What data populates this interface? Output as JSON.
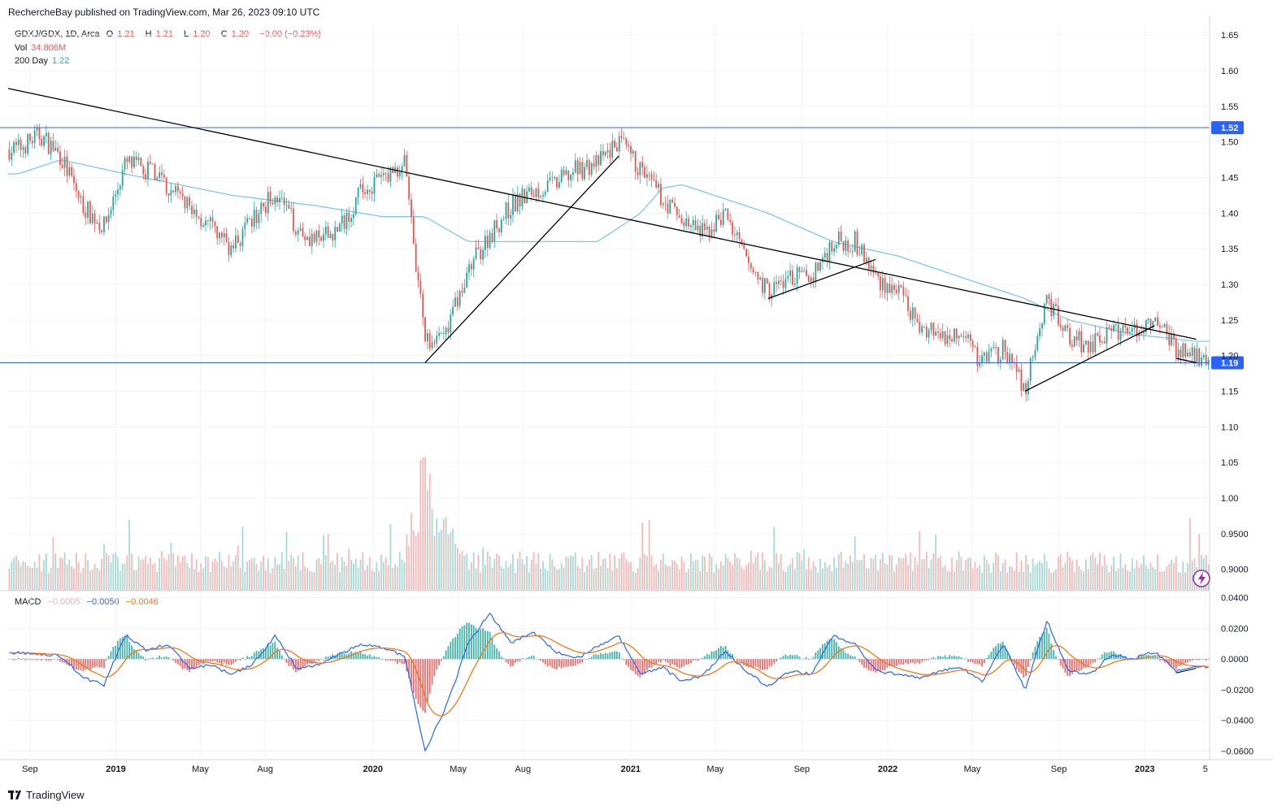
{
  "header": {
    "publisher": "RechercheBay published on TradingView.com, Mar 26, 2023 09:10 UTC"
  },
  "legend": {
    "symbol": "GDXJ/GDX, 1D, Arca",
    "open_label": "O",
    "open_value": "1.21",
    "high_label": "H",
    "high_value": "1.21",
    "low_label": "L",
    "low_value": "1.20",
    "close_label": "C",
    "close_value": "1.20",
    "change": "−0.00 (−0.23%)",
    "vol_label": "Vol",
    "vol_value": "34.806M",
    "ma_label": "200 Day",
    "ma_value": "1.22",
    "macd_label": "MACD",
    "macd_hist": "−0.0005",
    "macd_line": "−0.0050",
    "macd_signal": "−0.0046"
  },
  "footer": {
    "brand": "TradingView"
  },
  "colors": {
    "up": "#26a69a",
    "down": "#ef5350",
    "ma": "#7ec8e3",
    "hline": "#2962ff",
    "macd": "#2962ff",
    "signal": "#ff6d00",
    "trend": "#000000"
  },
  "chart_data": [
    {
      "type": "candlestick",
      "name": "price",
      "y_axis_ticks": [
        "1.65",
        "1.60",
        "1.55",
        "1.50",
        "1.45",
        "1.40",
        "1.35",
        "1.30",
        "1.25",
        "1.20",
        "1.15",
        "1.10",
        "1.05",
        "1.00",
        "0.9500",
        "0.9000"
      ],
      "ylim": [
        0.87,
        1.665
      ],
      "x_ticks": [
        {
          "label": "Sep",
          "bold": false
        },
        {
          "label": "2019",
          "bold": true
        },
        {
          "label": "May",
          "bold": false
        },
        {
          "label": "Aug",
          "bold": false
        },
        {
          "label": "2020",
          "bold": true
        },
        {
          "label": "May",
          "bold": false
        },
        {
          "label": "Aug",
          "bold": false
        },
        {
          "label": "2021",
          "bold": true
        },
        {
          "label": "May",
          "bold": false
        },
        {
          "label": "Sep",
          "bold": false
        },
        {
          "label": "2022",
          "bold": true
        },
        {
          "label": "May",
          "bold": false
        },
        {
          "label": "Sep",
          "bold": false
        },
        {
          "label": "2023",
          "bold": true
        },
        {
          "label": "5",
          "bold": false
        }
      ],
      "horizontal_levels": [
        {
          "value": 1.52,
          "label": "1.52"
        },
        {
          "value": 1.19,
          "label": "1.19"
        }
      ],
      "close_path": [
        [
          "2018-08",
          1.49
        ],
        [
          "2018-09",
          1.51
        ],
        [
          "2018-10",
          1.48
        ],
        [
          "2018-11",
          1.41
        ],
        [
          "2018-12",
          1.38
        ],
        [
          "2019-01",
          1.47
        ],
        [
          "2019-02",
          1.46
        ],
        [
          "2019-03",
          1.44
        ],
        [
          "2019-04",
          1.41
        ],
        [
          "2019-05",
          1.38
        ],
        [
          "2019-06",
          1.35
        ],
        [
          "2019-07",
          1.39
        ],
        [
          "2019-08",
          1.43
        ],
        [
          "2019-09",
          1.38
        ],
        [
          "2019-10",
          1.36
        ],
        [
          "2019-11",
          1.38
        ],
        [
          "2019-12",
          1.43
        ],
        [
          "2020-01",
          1.45
        ],
        [
          "2020-02",
          1.47
        ],
        [
          "2020-03",
          1.22
        ],
        [
          "2020-04",
          1.24
        ],
        [
          "2020-05",
          1.32
        ],
        [
          "2020-06",
          1.37
        ],
        [
          "2020-07",
          1.41
        ],
        [
          "2020-08",
          1.43
        ],
        [
          "2020-09",
          1.44
        ],
        [
          "2020-10",
          1.46
        ],
        [
          "2020-11",
          1.47
        ],
        [
          "2020-12",
          1.5
        ],
        [
          "2021-01",
          1.46
        ],
        [
          "2021-02",
          1.42
        ],
        [
          "2021-03",
          1.39
        ],
        [
          "2021-04",
          1.37
        ],
        [
          "2021-05",
          1.4
        ],
        [
          "2021-06",
          1.33
        ],
        [
          "2021-07",
          1.29
        ],
        [
          "2021-08",
          1.31
        ],
        [
          "2021-09",
          1.31
        ],
        [
          "2021-10",
          1.36
        ],
        [
          "2021-11",
          1.36
        ],
        [
          "2021-12",
          1.31
        ],
        [
          "2022-01",
          1.29
        ],
        [
          "2022-02",
          1.24
        ],
        [
          "2022-03",
          1.23
        ],
        [
          "2022-04",
          1.23
        ],
        [
          "2022-05",
          1.19
        ],
        [
          "2022-06",
          1.21
        ],
        [
          "2022-07",
          1.15
        ],
        [
          "2022-08",
          1.28
        ],
        [
          "2022-09",
          1.23
        ],
        [
          "2022-10",
          1.21
        ],
        [
          "2022-11",
          1.24
        ],
        [
          "2022-12",
          1.23
        ],
        [
          "2023-01",
          1.25
        ],
        [
          "2023-02",
          1.21
        ],
        [
          "2023-03",
          1.2
        ]
      ],
      "ma200_path": [
        [
          "2018-08",
          1.455
        ],
        [
          "2018-10",
          1.475
        ],
        [
          "2019-01",
          1.455
        ],
        [
          "2019-06",
          1.425
        ],
        [
          "2019-10",
          1.41
        ],
        [
          "2020-01",
          1.395
        ],
        [
          "2020-03",
          1.395
        ],
        [
          "2020-05",
          1.36
        ],
        [
          "2020-08",
          1.36
        ],
        [
          "2020-11",
          1.36
        ],
        [
          "2021-01",
          1.4
        ],
        [
          "2021-02",
          1.435
        ],
        [
          "2021-03",
          1.44
        ],
        [
          "2021-05",
          1.42
        ],
        [
          "2021-07",
          1.4
        ],
        [
          "2021-10",
          1.36
        ],
        [
          "2022-01",
          1.34
        ],
        [
          "2022-04",
          1.31
        ],
        [
          "2022-07",
          1.28
        ],
        [
          "2022-09",
          1.25
        ],
        [
          "2022-12",
          1.23
        ],
        [
          "2023-03",
          1.22
        ]
      ],
      "trendlines": [
        {
          "from": [
            "2018-08",
            1.575
          ],
          "to": [
            "2023-03",
            1.223
          ]
        },
        {
          "from": [
            "2020-03",
            1.19
          ],
          "to": [
            "2020-12",
            1.48
          ]
        },
        {
          "from": [
            "2021-07",
            1.28
          ],
          "to": [
            "2021-12",
            1.335
          ]
        },
        {
          "from": [
            "2022-07",
            1.15
          ],
          "to": [
            "2023-01",
            1.242
          ]
        },
        {
          "from": [
            "2023-02",
            1.196
          ],
          "to": [
            "2023-03",
            1.19
          ]
        }
      ]
    },
    {
      "type": "bar",
      "name": "volume",
      "note_scale": "relative height, overlay at bottom of price pane",
      "spikes": [
        [
          "2020-03",
          1.0
        ],
        [
          "2020-04",
          0.55
        ],
        [
          "2019-03",
          0.35
        ],
        [
          "2022-03",
          0.25
        ]
      ],
      "baseline": 0.25
    },
    {
      "type": "line",
      "name": "MACD",
      "y_axis_ticks": [
        "0.0400",
        "0.0200",
        "0.0000",
        "−0.0200",
        "−0.0400",
        "−0.0600"
      ],
      "ylim": [
        -0.064,
        0.043
      ],
      "macd_path": [
        [
          "2018-08",
          0.004
        ],
        [
          "2018-10",
          0.002
        ],
        [
          "2018-11",
          -0.012
        ],
        [
          "2018-12",
          -0.017
        ],
        [
          "2019-01",
          0.016
        ],
        [
          "2019-02",
          0.005
        ],
        [
          "2019-03",
          0.01
        ],
        [
          "2019-04",
          -0.006
        ],
        [
          "2019-05",
          -0.004
        ],
        [
          "2019-06",
          -0.01
        ],
        [
          "2019-07",
          -0.003
        ],
        [
          "2019-08",
          0.015
        ],
        [
          "2019-09",
          -0.006
        ],
        [
          "2019-10",
          -0.004
        ],
        [
          "2019-12",
          0.01
        ],
        [
          "2020-01",
          0.007
        ],
        [
          "2020-02",
          0.002
        ],
        [
          "2020-03",
          -0.06
        ],
        [
          "2020-04",
          -0.03
        ],
        [
          "2020-05",
          0.01
        ],
        [
          "2020-06",
          0.03
        ],
        [
          "2020-07",
          0.01
        ],
        [
          "2020-08",
          0.018
        ],
        [
          "2020-09",
          0.005
        ],
        [
          "2020-10",
          0.0
        ],
        [
          "2020-11",
          0.008
        ],
        [
          "2020-12",
          0.015
        ],
        [
          "2021-01",
          -0.01
        ],
        [
          "2021-02",
          -0.005
        ],
        [
          "2021-03",
          -0.015
        ],
        [
          "2021-04",
          -0.01
        ],
        [
          "2021-05",
          0.005
        ],
        [
          "2021-06",
          -0.008
        ],
        [
          "2021-07",
          -0.018
        ],
        [
          "2021-08",
          -0.008
        ],
        [
          "2021-09",
          -0.01
        ],
        [
          "2021-10",
          0.015
        ],
        [
          "2021-11",
          0.01
        ],
        [
          "2021-12",
          -0.008
        ],
        [
          "2022-01",
          -0.01
        ],
        [
          "2022-02",
          -0.012
        ],
        [
          "2022-03",
          -0.008
        ],
        [
          "2022-04",
          -0.005
        ],
        [
          "2022-05",
          -0.015
        ],
        [
          "2022-06",
          0.01
        ],
        [
          "2022-07",
          -0.02
        ],
        [
          "2022-08",
          0.025
        ],
        [
          "2022-09",
          -0.008
        ],
        [
          "2022-10",
          -0.01
        ],
        [
          "2022-11",
          0.003
        ],
        [
          "2022-12",
          0.0
        ],
        [
          "2023-01",
          0.005
        ],
        [
          "2023-02",
          -0.008
        ],
        [
          "2023-03",
          -0.005
        ]
      ],
      "divergence_line": {
        "from": [
          "2023-02",
          -0.009
        ],
        "to": [
          "2023-03",
          -0.006
        ]
      }
    }
  ]
}
